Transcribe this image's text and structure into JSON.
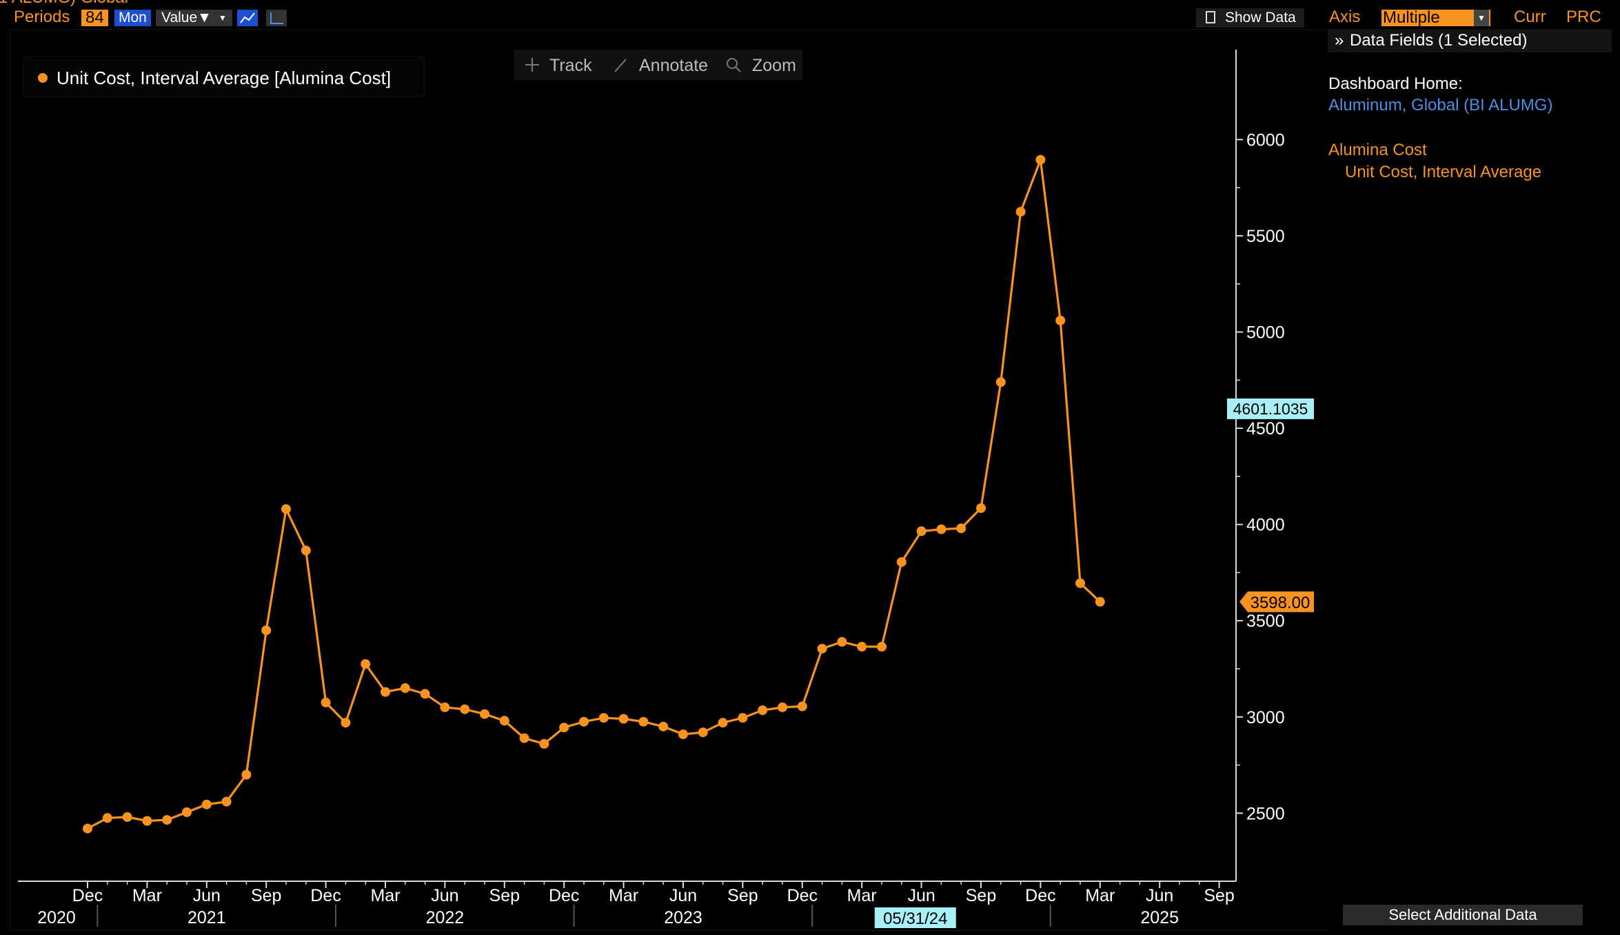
{
  "header": {
    "clipped_title": "1 ALUMG) Global",
    "periods_label": "Periods",
    "periods_value": "84",
    "frequency": "Mon",
    "value_dropdown": "Value▼",
    "show_data_label": "Show Data",
    "axis_label": "Axis",
    "axis_value": "Multiple",
    "curr_label": "Curr",
    "prc_label": "PRC"
  },
  "chart_tools": {
    "track": "Track",
    "annotate": "Annotate",
    "zoom": "Zoom"
  },
  "legend": {
    "label": "Unit Cost, Interval Average [Alumina Cost]"
  },
  "right_panel": {
    "data_fields_title": "Data Fields (1 Selected)",
    "dashboard_label": "Dashboard Home:",
    "dashboard_link": "Aluminum, Global (BI ALUMG)",
    "field_group": "Alumina Cost",
    "field_name": "Unit Cost, Interval Average",
    "select_additional_button": "Select Additional Data"
  },
  "colors": {
    "series": "#f7931e",
    "background": "#000000",
    "axis": "#d9d9d9",
    "link": "#4a8fe7",
    "highlight": "#a8f0f5"
  },
  "chart_data": {
    "type": "line",
    "series": [
      {
        "name": "Unit Cost, Interval Average [Alumina Cost]",
        "x": [
          "2020-12",
          "2021-01",
          "2021-02",
          "2021-03",
          "2021-04",
          "2021-05",
          "2021-06",
          "2021-07",
          "2021-08",
          "2021-09",
          "2021-10",
          "2021-11",
          "2021-12",
          "2022-01",
          "2022-02",
          "2022-03",
          "2022-04",
          "2022-05",
          "2022-06",
          "2022-07",
          "2022-08",
          "2022-09",
          "2022-10",
          "2022-11",
          "2022-12",
          "2023-01",
          "2023-02",
          "2023-03",
          "2023-04",
          "2023-05",
          "2023-06",
          "2023-07",
          "2023-08",
          "2023-09",
          "2023-10",
          "2023-11",
          "2023-12",
          "2024-01",
          "2024-02",
          "2024-03",
          "2024-04",
          "2024-05",
          "2024-06",
          "2024-07",
          "2024-08",
          "2024-09",
          "2024-10",
          "2024-11",
          "2024-12",
          "2025-01",
          "2025-02",
          "2025-03"
        ],
        "values": [
          2420,
          2475,
          2480,
          2460,
          2465,
          2505,
          2545,
          2560,
          2700,
          3450,
          4080,
          3865,
          3075,
          2970,
          3275,
          3130,
          3150,
          3120,
          3050,
          3040,
          3015,
          2980,
          2890,
          2860,
          2945,
          2975,
          2995,
          2990,
          2975,
          2950,
          2910,
          2920,
          2970,
          2995,
          3035,
          3050,
          3055,
          3355,
          3390,
          3365,
          3365,
          3805,
          3965,
          3975,
          3980,
          4085,
          4740,
          5625,
          5895,
          5060,
          3695,
          3598
        ]
      }
    ],
    "ylim": [
      2150,
      6220
    ],
    "y_ticks": [
      2500,
      3000,
      3500,
      4000,
      4500,
      5000,
      5500,
      6000
    ],
    "x_month_ticks": [
      {
        "date": "2020-12",
        "label": "Dec"
      },
      {
        "date": "2021-03",
        "label": "Mar"
      },
      {
        "date": "2021-06",
        "label": "Jun"
      },
      {
        "date": "2021-09",
        "label": "Sep"
      },
      {
        "date": "2021-12",
        "label": "Dec"
      },
      {
        "date": "2022-03",
        "label": "Mar"
      },
      {
        "date": "2022-06",
        "label": "Jun"
      },
      {
        "date": "2022-09",
        "label": "Sep"
      },
      {
        "date": "2022-12",
        "label": "Dec"
      },
      {
        "date": "2023-03",
        "label": "Mar"
      },
      {
        "date": "2023-06",
        "label": "Jun"
      },
      {
        "date": "2023-09",
        "label": "Sep"
      },
      {
        "date": "2023-12",
        "label": "Dec"
      },
      {
        "date": "2024-03",
        "label": "Mar"
      },
      {
        "date": "2024-06",
        "label": "Jun"
      },
      {
        "date": "2024-09",
        "label": "Sep"
      },
      {
        "date": "2024-12",
        "label": "Dec"
      },
      {
        "date": "2025-03",
        "label": "Mar"
      },
      {
        "date": "2025-06",
        "label": "Jun"
      },
      {
        "date": "2025-09",
        "label": "Sep"
      }
    ],
    "x_year_labels": [
      {
        "date": "2020-12",
        "label": "2020"
      },
      {
        "date": "2021-06",
        "label": "2021"
      },
      {
        "date": "2022-06",
        "label": "2022"
      },
      {
        "date": "2023-06",
        "label": "2023"
      },
      {
        "date": "2025-06",
        "label": "2025"
      }
    ],
    "x_cursor": {
      "date": "2024-05",
      "label": "05/31/24"
    },
    "y_cursor": {
      "value": 4601.1035,
      "label": "4601.1035"
    },
    "last_value": {
      "value": 3598,
      "label": "3598.00"
    },
    "grid": false,
    "legend_position": "top-left"
  }
}
